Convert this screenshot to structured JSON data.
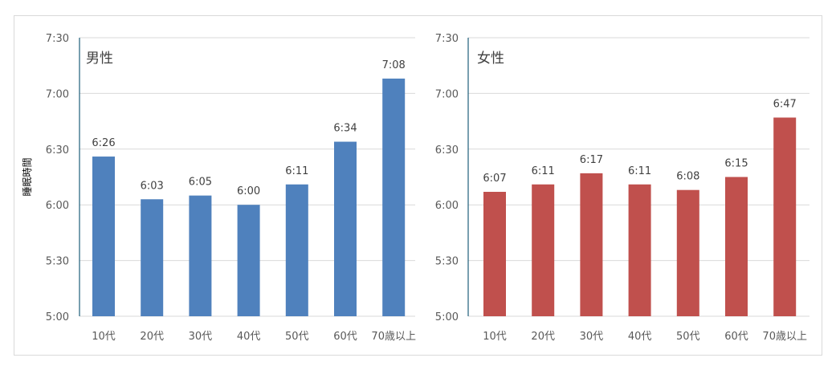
{
  "chart_data": [
    {
      "type": "bar",
      "title": "男性",
      "ylabel": "睡眠時間",
      "categories": [
        "10代",
        "20代",
        "30代",
        "40代",
        "50代",
        "60代",
        "70歳以上"
      ],
      "values": [
        "6:26",
        "6:03",
        "6:05",
        "6:00",
        "6:11",
        "6:34",
        "7:08"
      ],
      "ylim": [
        "5:00",
        "7:30"
      ],
      "yticks": [
        "7:30",
        "7:00",
        "6:30",
        "6:00",
        "5:30",
        "5:00"
      ],
      "color": "#4f81bd",
      "grid": true
    },
    {
      "type": "bar",
      "title": "女性",
      "categories": [
        "10代",
        "20代",
        "30代",
        "40代",
        "50代",
        "60代",
        "70歳以上"
      ],
      "values": [
        "6:07",
        "6:11",
        "6:17",
        "6:11",
        "6:08",
        "6:15",
        "6:47"
      ],
      "ylim": [
        "5:00",
        "7:30"
      ],
      "yticks": [
        "7:30",
        "7:00",
        "6:30",
        "6:00",
        "5:30",
        "5:00"
      ],
      "color": "#c0504d",
      "grid": true
    }
  ]
}
